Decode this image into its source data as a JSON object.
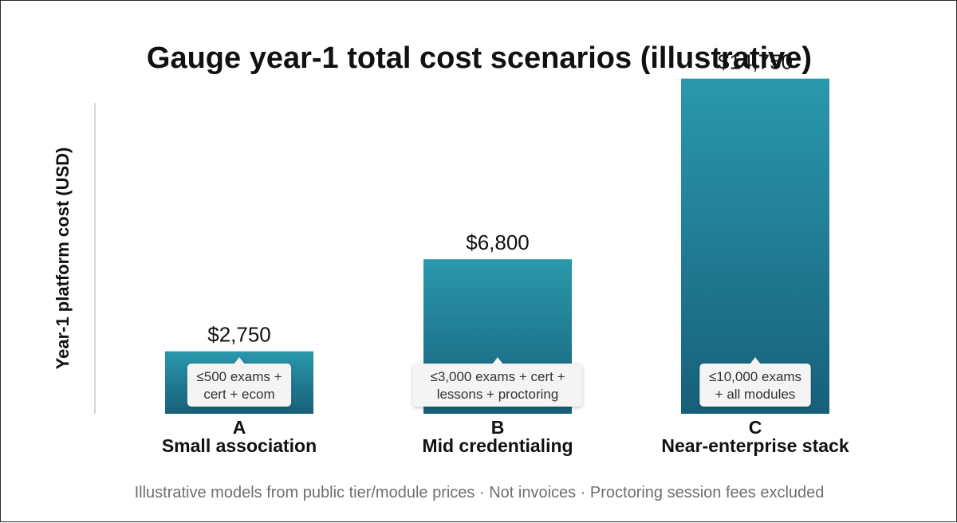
{
  "chart_data": {
    "type": "bar",
    "title": "Gauge year-1 total cost scenarios (illustrative)",
    "ylabel": "Year-1 platform cost (USD)",
    "xlabel": "",
    "ylim": [
      0,
      16000
    ],
    "grid": false,
    "categories": [
      "A",
      "B",
      "C"
    ],
    "category_descriptions": [
      "Small association",
      "Mid credentialing",
      "Near-enterprise stack"
    ],
    "values": [
      2750,
      6800,
      14750
    ],
    "value_labels": [
      "$2,750",
      "$6,800",
      "$14,750"
    ],
    "bar_notes": [
      [
        "≤500 exams +",
        "cert + ecom"
      ],
      [
        "≤3,000 exams + cert +",
        "lessons + proctoring"
      ],
      [
        "≤10,000 exams",
        "+ all modules"
      ]
    ],
    "footnote": "Illustrative models from public tier/module prices · Not invoices · Proctoring session fees excluded",
    "colors": {
      "bar_top": "#2a98ac",
      "bar_bottom": "#17607a",
      "axis": "#c8c8c8",
      "callout_bg": "#f4f4f4"
    }
  }
}
